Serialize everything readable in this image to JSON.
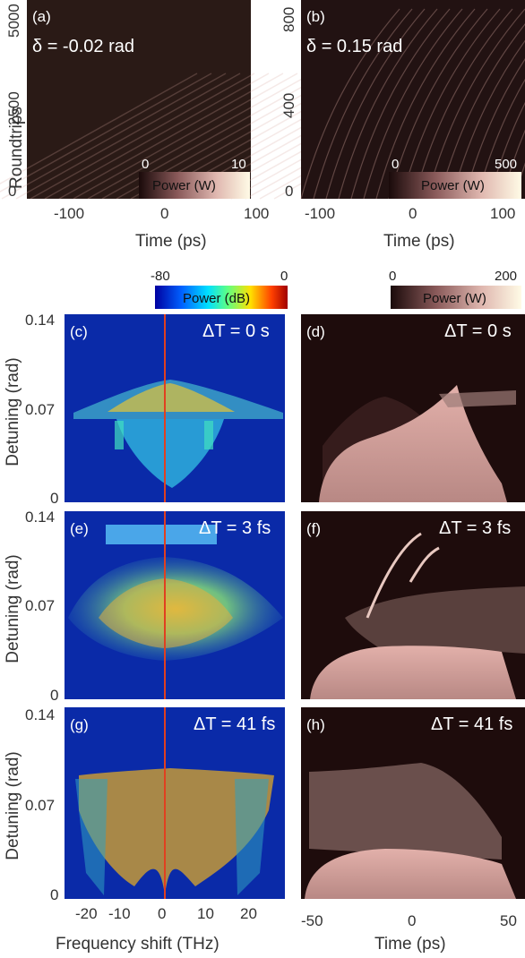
{
  "chart_data": [
    {
      "panel": "a",
      "type": "heatmap",
      "label": "(a)",
      "annotation": "δ = -0.02 rad",
      "xlabel": "Time (ps)",
      "ylabel": "Roundtrips",
      "xticks": [
        "-100",
        "0",
        "100"
      ],
      "yticks": [
        "0",
        "2500",
        "5000"
      ],
      "xlim": [
        -125,
        125
      ],
      "ylim": [
        0,
        5000
      ],
      "colorbar": {
        "label": "Power (W)",
        "min": "0",
        "max": "10"
      }
    },
    {
      "panel": "b",
      "type": "heatmap",
      "label": "(b)",
      "annotation": "δ = 0.15 rad",
      "xlabel": "Time (ps)",
      "ylabel": "",
      "xticks": [
        "-100",
        "0",
        "100"
      ],
      "yticks": [
        "0",
        "400",
        "800"
      ],
      "xlim": [
        -125,
        125
      ],
      "ylim": [
        0,
        800
      ],
      "colorbar": {
        "label": "Power (W)",
        "min": "0",
        "max": "500"
      }
    },
    {
      "panel": "c",
      "type": "heatmap",
      "label": "(c)",
      "annotation": "ΔT = 0 s",
      "ylabel": "Detuning (rad)",
      "yticks": [
        "0",
        "0.07",
        "0.14"
      ],
      "xlim": [
        -25,
        25
      ],
      "ylim": [
        0,
        0.14
      ]
    },
    {
      "panel": "d",
      "type": "heatmap",
      "label": "(d)",
      "annotation": "ΔT = 0 s",
      "xlim": [
        -50,
        50
      ],
      "ylim": [
        0,
        0.14
      ]
    },
    {
      "panel": "e",
      "type": "heatmap",
      "label": "(e)",
      "annotation": "ΔT = 3 fs",
      "ylabel": "Detuning (rad)",
      "yticks": [
        "0",
        "0.07",
        "0.14"
      ],
      "xlim": [
        -25,
        25
      ],
      "ylim": [
        0,
        0.14
      ]
    },
    {
      "panel": "f",
      "type": "heatmap",
      "label": "(f)",
      "annotation": "ΔT = 3 fs",
      "xlim": [
        -50,
        50
      ],
      "ylim": [
        0,
        0.14
      ]
    },
    {
      "panel": "g",
      "type": "heatmap",
      "label": "(g)",
      "annotation": "ΔT = 41 fs",
      "ylabel": "Detuning (rad)",
      "yticks": [
        "0",
        "0.07",
        "0.14"
      ],
      "xlabel": "Frequency shift (THz)",
      "xticks": [
        "-20",
        "-10",
        "0",
        "10",
        "20"
      ],
      "xlim": [
        -25,
        25
      ],
      "ylim": [
        0,
        0.14
      ]
    },
    {
      "panel": "h",
      "type": "heatmap",
      "label": "(h)",
      "annotation": "ΔT = 41 fs",
      "xlabel": "Time (ps)",
      "xticks": [
        "-50",
        "0",
        "50"
      ],
      "xlim": [
        -50,
        50
      ],
      "ylim": [
        0,
        0.14
      ]
    }
  ],
  "colorbars": {
    "spectral": {
      "label": "Power (dB)",
      "min": "-80",
      "max": "0"
    },
    "temporal": {
      "label": "Power (W)",
      "min": "0",
      "max": "200"
    }
  },
  "colors": {
    "spectral_bg": "#0a2aa8",
    "temporal_bg": "#1e0c0c",
    "trace": "#d8a8a0",
    "pink": "#d9a5a0"
  }
}
